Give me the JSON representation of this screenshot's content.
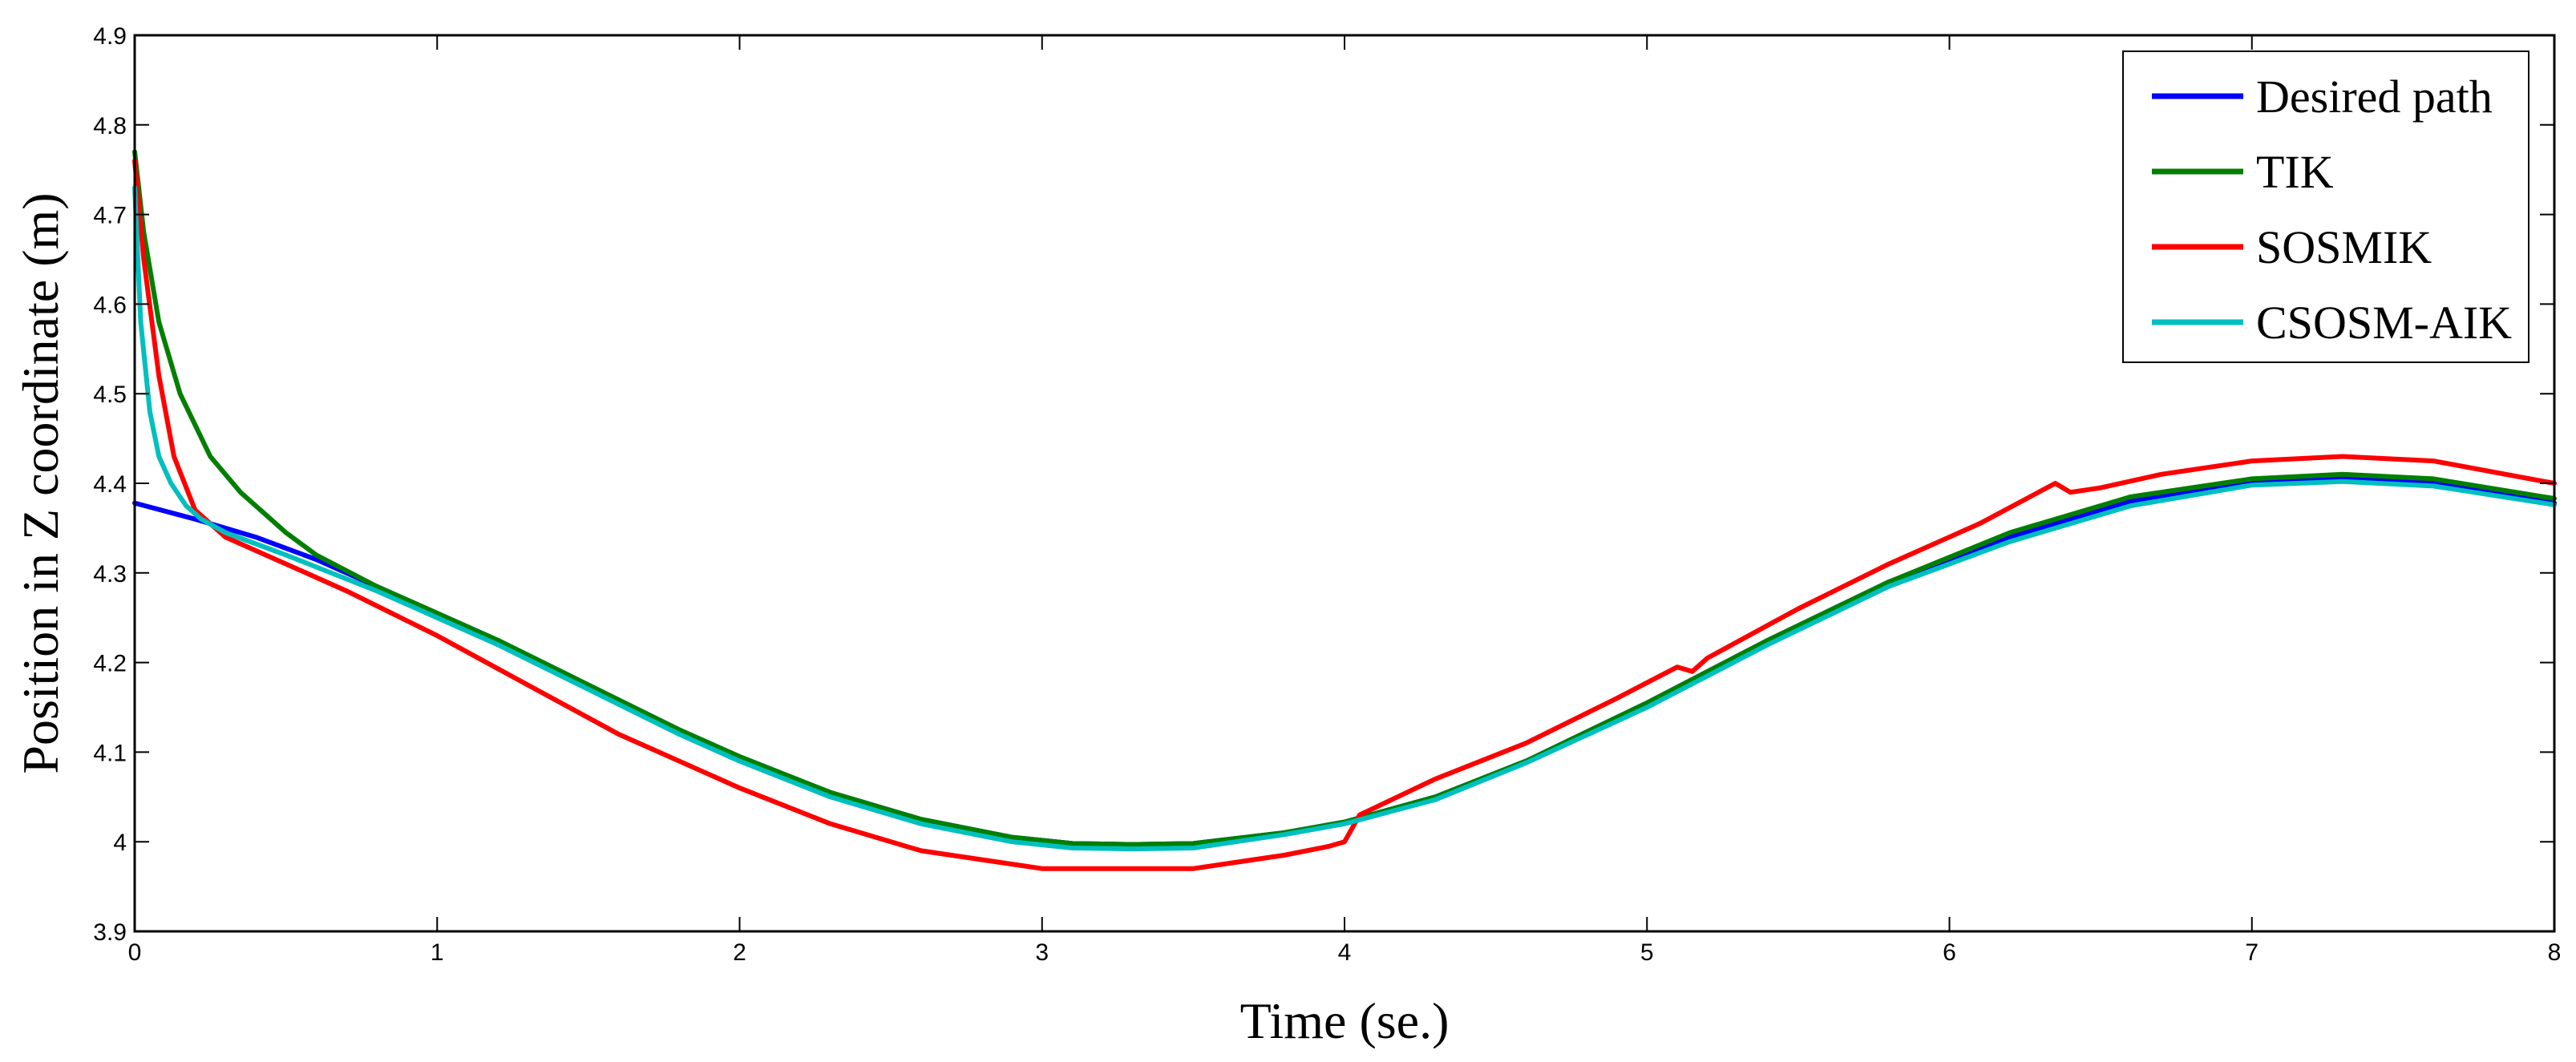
{
  "chart_data": {
    "type": "line",
    "xlabel": "Time (se.)",
    "ylabel": "Position in Z coordinate (m)",
    "xlim": [
      0,
      8
    ],
    "ylim": [
      3.9,
      4.9
    ],
    "xticks": [
      "0",
      "1",
      "2",
      "3",
      "4",
      "5",
      "6",
      "7",
      "8"
    ],
    "yticks": [
      "3.9",
      "4",
      "4.1",
      "4.2",
      "4.3",
      "4.4",
      "4.5",
      "4.6",
      "4.7",
      "4.8",
      "4.9"
    ],
    "grid": false,
    "legend_position": "top-right",
    "series": [
      {
        "name": "Desired path",
        "color": "#0000ff",
        "x": [
          0,
          0.2,
          0.4,
          0.6,
          0.8,
          1.0,
          1.2,
          1.5,
          1.8,
          2.0,
          2.3,
          2.6,
          2.9,
          3.1,
          3.3,
          3.5,
          3.8,
          4.0,
          4.3,
          4.6,
          5.0,
          5.4,
          5.8,
          6.2,
          6.6,
          7.0,
          7.3,
          7.6,
          8.0
        ],
        "y": [
          4.378,
          4.36,
          4.34,
          4.315,
          4.285,
          4.255,
          4.225,
          4.175,
          4.125,
          4.095,
          4.055,
          4.025,
          4.005,
          3.998,
          3.997,
          3.998,
          4.01,
          4.022,
          4.05,
          4.09,
          4.155,
          4.225,
          4.29,
          4.34,
          4.38,
          4.402,
          4.405,
          4.4,
          4.378
        ]
      },
      {
        "name": "TIK",
        "color": "#007f00",
        "x": [
          0,
          0.03,
          0.08,
          0.15,
          0.25,
          0.35,
          0.5,
          0.6,
          0.8,
          1.0,
          1.2,
          1.5,
          1.8,
          2.0,
          2.3,
          2.6,
          2.9,
          3.1,
          3.3,
          3.5,
          3.8,
          4.0,
          4.3,
          4.6,
          5.0,
          5.4,
          5.8,
          6.2,
          6.6,
          7.0,
          7.3,
          7.6,
          8.0
        ],
        "y": [
          4.77,
          4.68,
          4.58,
          4.5,
          4.43,
          4.39,
          4.345,
          4.32,
          4.285,
          4.255,
          4.225,
          4.175,
          4.125,
          4.095,
          4.055,
          4.025,
          4.005,
          3.998,
          3.997,
          3.998,
          4.01,
          4.022,
          4.05,
          4.09,
          4.155,
          4.225,
          4.29,
          4.345,
          4.385,
          4.405,
          4.41,
          4.405,
          4.383
        ]
      },
      {
        "name": "SOSMIK",
        "color": "#ff0000",
        "x": [
          0,
          0.03,
          0.08,
          0.13,
          0.2,
          0.3,
          0.5,
          0.7,
          1.0,
          1.3,
          1.6,
          2.0,
          2.3,
          2.6,
          2.9,
          3.0,
          3.2,
          3.5,
          3.8,
          3.95,
          4.0,
          4.05,
          4.3,
          4.6,
          4.9,
          5.1,
          5.15,
          5.2,
          5.5,
          5.8,
          6.1,
          6.35,
          6.4,
          6.5,
          6.7,
          7.0,
          7.3,
          7.6,
          8.0
        ],
        "y": [
          4.76,
          4.65,
          4.52,
          4.43,
          4.37,
          4.34,
          4.31,
          4.28,
          4.23,
          4.175,
          4.12,
          4.06,
          4.02,
          3.99,
          3.975,
          3.97,
          3.97,
          3.97,
          3.985,
          3.995,
          4.0,
          4.03,
          4.07,
          4.11,
          4.16,
          4.195,
          4.19,
          4.205,
          4.26,
          4.31,
          4.355,
          4.4,
          4.39,
          4.395,
          4.41,
          4.425,
          4.43,
          4.425,
          4.4
        ]
      },
      {
        "name": "CSOSM-AIK",
        "color": "#00bfbf",
        "x": [
          0,
          0.02,
          0.05,
          0.08,
          0.12,
          0.17,
          0.22,
          0.3,
          0.5,
          0.8,
          1.0,
          1.2,
          1.5,
          1.8,
          2.0,
          2.3,
          2.6,
          2.9,
          3.1,
          3.3,
          3.5,
          3.8,
          4.0,
          4.3,
          4.6,
          5.0,
          5.4,
          5.8,
          6.2,
          6.6,
          7.0,
          7.3,
          7.6,
          8.0
        ],
        "y": [
          4.73,
          4.58,
          4.48,
          4.43,
          4.4,
          4.375,
          4.36,
          4.345,
          4.32,
          4.28,
          4.25,
          4.22,
          4.17,
          4.12,
          4.09,
          4.05,
          4.02,
          4.0,
          3.993,
          3.992,
          3.993,
          4.008,
          4.02,
          4.047,
          4.088,
          4.15,
          4.22,
          4.285,
          4.335,
          4.375,
          4.398,
          4.402,
          4.397,
          4.376
        ]
      }
    ]
  }
}
